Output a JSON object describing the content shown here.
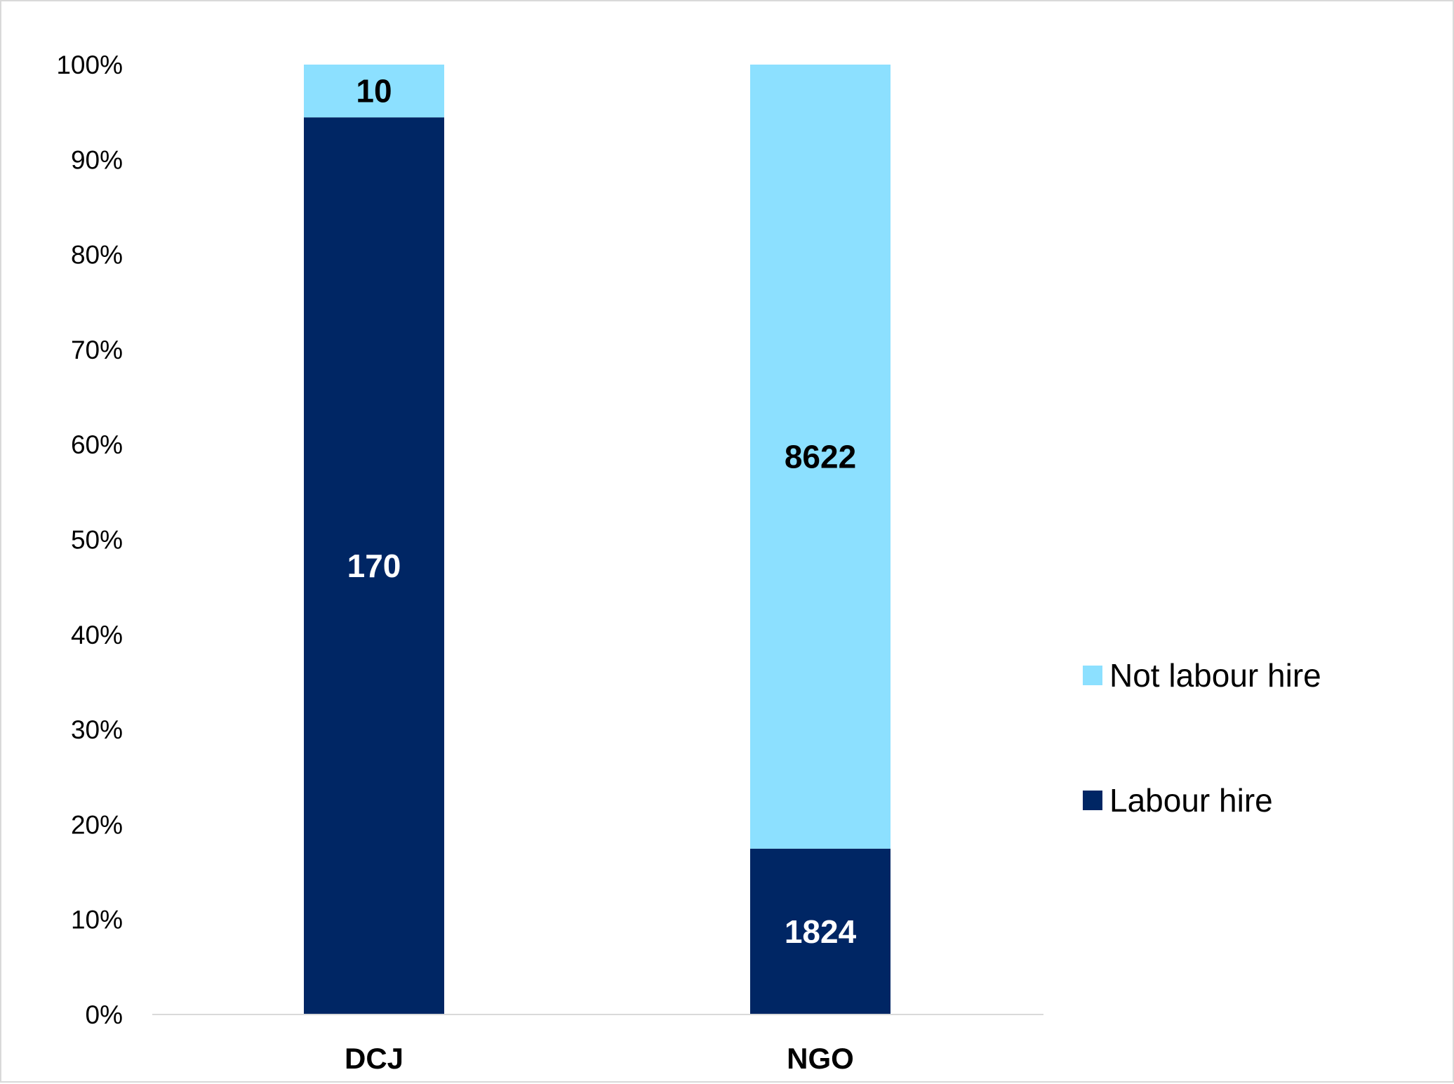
{
  "chart_data": {
    "type": "bar",
    "stacked": "percent",
    "categories": [
      "DCJ",
      "NGO"
    ],
    "series": [
      {
        "name": "Labour hire",
        "values": [
          170,
          1824
        ],
        "color": "#002664",
        "label_color": "#ffffff"
      },
      {
        "name": "Not labour hire",
        "values": [
          10,
          8622
        ],
        "color": "#8ce0ff",
        "label_color": "#000000"
      }
    ],
    "y_ticks": [
      "0%",
      "10%",
      "20%",
      "30%",
      "40%",
      "50%",
      "60%",
      "70%",
      "80%",
      "90%",
      "100%"
    ],
    "ylim": [
      0,
      100
    ],
    "grid": false,
    "legend": {
      "position": "right",
      "order": [
        "Not labour hire",
        "Labour hire"
      ]
    },
    "axis_color": "#d9d9d9"
  }
}
